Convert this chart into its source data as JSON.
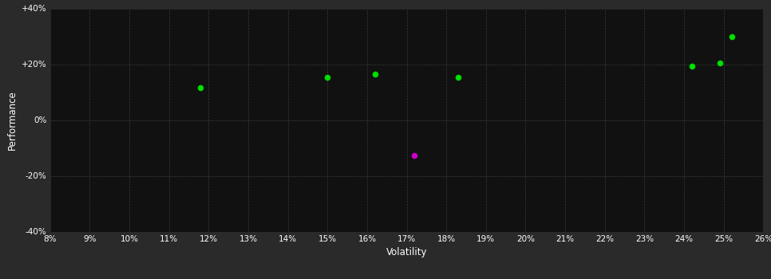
{
  "background_color": "#2a2a2a",
  "plot_bg_color": "#111111",
  "grid_color": "#3a3a3a",
  "grid_style": "--",
  "xlabel": "Volatility",
  "ylabel": "Performance",
  "xlim": [
    0.08,
    0.26
  ],
  "ylim": [
    -0.4,
    0.4
  ],
  "xticks": [
    0.08,
    0.09,
    0.1,
    0.11,
    0.12,
    0.13,
    0.14,
    0.15,
    0.16,
    0.17,
    0.18,
    0.19,
    0.2,
    0.21,
    0.22,
    0.23,
    0.24,
    0.25,
    0.26
  ],
  "yticks": [
    -0.4,
    -0.2,
    0.0,
    0.2,
    0.4
  ],
  "ytick_labels": [
    "-40%",
    "-20%",
    "0%",
    "+20%",
    "+40%"
  ],
  "green_points": [
    [
      0.118,
      0.115
    ],
    [
      0.15,
      0.152
    ],
    [
      0.162,
      0.163
    ],
    [
      0.183,
      0.152
    ],
    [
      0.242,
      0.193
    ],
    [
      0.249,
      0.203
    ],
    [
      0.252,
      0.3
    ]
  ],
  "magenta_points": [
    [
      0.172,
      -0.127
    ]
  ],
  "green_color": "#00dd00",
  "magenta_color": "#cc00cc",
  "marker_size": 30,
  "font_color": "#ffffff",
  "tick_fontsize": 7.5,
  "label_fontsize": 8.5
}
